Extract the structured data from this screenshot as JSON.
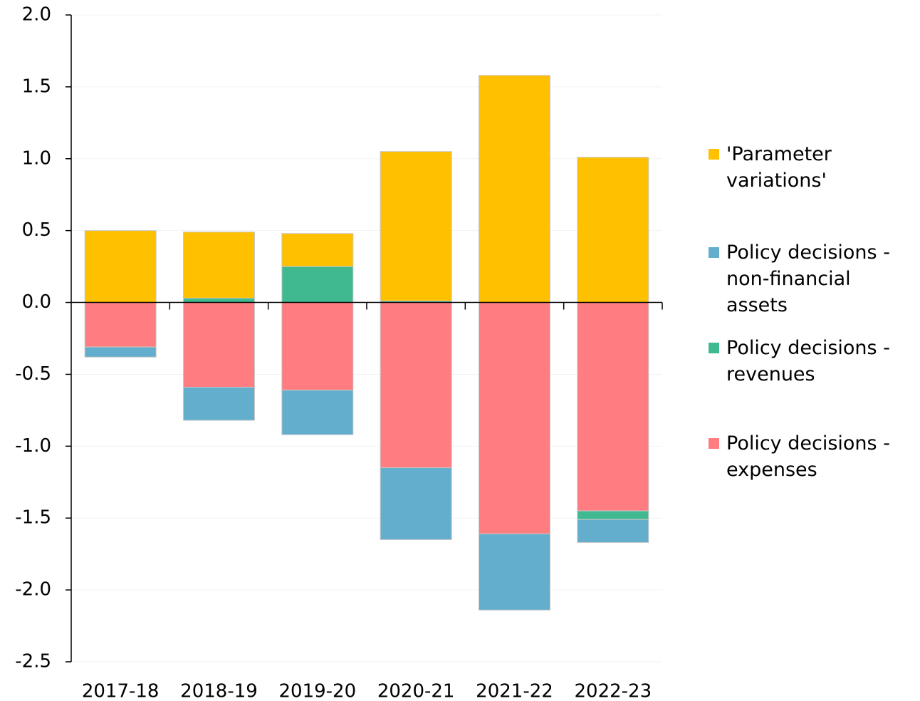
{
  "chart_data": {
    "type": "stacked_bar",
    "categories": [
      "2017-18",
      "2018-19",
      "2019-20",
      "2020-21",
      "2021-22",
      "2022-23"
    ],
    "series": [
      {
        "name": "'Parameter variations'",
        "color": "#FFC000",
        "values": [
          0.5,
          0.46,
          0.23,
          1.04,
          1.58,
          1.01
        ]
      },
      {
        "name": "Policy decisions - non-financial assets",
        "color": "#62AECC",
        "values": [
          -0.07,
          -0.23,
          -0.31,
          -0.5,
          -0.53,
          -0.16
        ]
      },
      {
        "name": "Policy decisions - revenues",
        "color": "#40B991",
        "values": [
          0,
          0.03,
          0.25,
          0.01,
          0,
          -0.06
        ]
      },
      {
        "name": "Policy decisions - expenses",
        "color": "#FF7C80",
        "values": [
          -0.31,
          -0.59,
          -0.61,
          -1.15,
          -1.61,
          -1.45
        ]
      }
    ],
    "ylim": [
      -2.5,
      2.0
    ],
    "yticks": [
      {
        "value": -2.5,
        "label": "-2.5"
      },
      {
        "value": -2.0,
        "label": "-2.0"
      },
      {
        "value": -1.5,
        "label": "-1.5"
      },
      {
        "value": -1.0,
        "label": "-1.0"
      },
      {
        "value": -0.5,
        "label": "-0.5"
      },
      {
        "value": 0.0,
        "label": "0.0"
      },
      {
        "value": 0.5,
        "label": "0.5"
      },
      {
        "value": 1.0,
        "label": "1.0"
      },
      {
        "value": 1.5,
        "label": "1.5"
      },
      {
        "value": 2.0,
        "label": "2.0"
      }
    ],
    "grid": true
  }
}
